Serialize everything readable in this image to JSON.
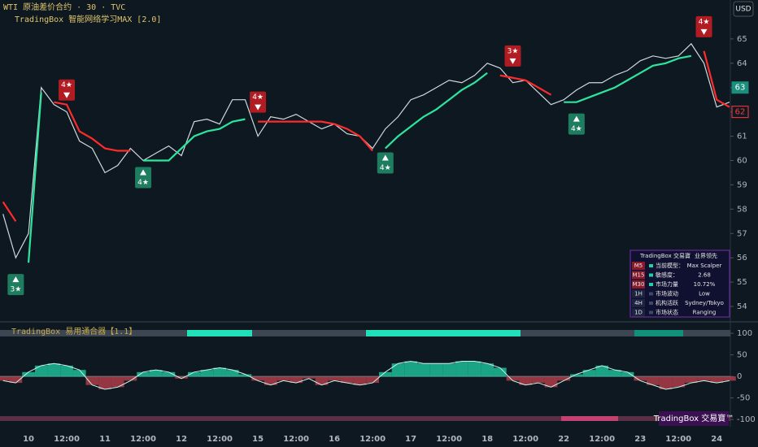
{
  "header": {
    "symbol": "WTI 原油差价合约 · 30 · TVC",
    "indicator": "TradingBox  智能网络学习MAX [2.0]",
    "currency": "USD",
    "oscillator": "TradingBox  易用通合器【1.1】",
    "brand": "TradingBox 交易寶™"
  },
  "table": {
    "header": [
      "TradingBox 交易寶",
      "业界领先"
    ],
    "rows": [
      [
        "M5",
        "当前模型：",
        "Max Scalper"
      ],
      [
        "M15",
        "敏感度：",
        "2.68"
      ],
      [
        "M30",
        "市场力量",
        "10.72%"
      ],
      [
        "1H",
        "市场波动",
        "Low"
      ],
      [
        "4H",
        "机构活跃",
        "Sydney/Tokyo"
      ],
      [
        "1D",
        "市场状态",
        "Ranging"
      ]
    ]
  },
  "chart_data": [
    {
      "type": "line",
      "categories": [
        null,
        null,
        "10",
        null,
        null,
        "12:00",
        null,
        null,
        "11",
        null,
        null,
        "12:00",
        null,
        null,
        "12",
        null,
        null,
        "12:00",
        null,
        null,
        "15",
        null,
        null,
        "12:00",
        null,
        null,
        "16",
        null,
        null,
        "12:00",
        null,
        null,
        "17",
        null,
        null,
        "12:00",
        null,
        null,
        "18",
        null,
        null,
        "12:00",
        null,
        null,
        "22",
        null,
        null,
        "12:00",
        null,
        null,
        "23",
        null,
        null,
        "12:00",
        null,
        null,
        "24",
        null
      ],
      "series": [
        {
          "color": "#cfd8dc",
          "values": [
            57.8,
            56.0,
            57.0,
            63.0,
            62.3,
            62.0,
            60.8,
            60.5,
            59.5,
            59.8,
            60.5,
            60.0,
            60.3,
            60.6,
            60.2,
            61.6,
            61.7,
            61.5,
            62.5,
            62.5,
            61.0,
            61.8,
            61.7,
            61.9,
            61.6,
            61.3,
            61.5,
            61.1,
            61.0,
            60.5,
            61.3,
            61.8,
            62.5,
            62.7,
            63.0,
            63.3,
            63.2,
            63.5,
            64.0,
            63.8,
            63.2,
            63.3,
            62.8,
            62.3,
            62.5,
            62.9,
            63.2,
            63.2,
            63.5,
            63.7,
            64.1,
            64.3,
            64.2,
            64.3,
            64.8,
            64.0,
            62.2,
            62.4
          ]
        },
        {
          "color": "#2ee59d",
          "values": [
            null,
            null,
            55.8,
            62.8,
            null,
            null,
            null,
            null,
            null,
            null,
            null,
            60.0,
            60.0,
            60.0,
            60.5,
            61.0,
            61.2,
            61.3,
            61.6,
            61.7,
            null,
            null,
            null,
            null,
            null,
            null,
            null,
            null,
            null,
            null,
            60.5,
            61.0,
            61.4,
            61.8,
            62.1,
            62.5,
            62.9,
            63.2,
            63.6,
            null,
            null,
            null,
            null,
            null,
            62.4,
            62.4,
            62.6,
            62.8,
            63.0,
            63.3,
            63.6,
            63.9,
            64.0,
            64.2,
            64.3,
            null,
            null,
            null
          ]
        },
        {
          "color": "#ff2b2b",
          "values": [
            58.3,
            57.5,
            null,
            null,
            62.4,
            62.3,
            61.2,
            60.9,
            60.5,
            60.4,
            60.4,
            null,
            null,
            null,
            null,
            null,
            null,
            null,
            null,
            null,
            61.6,
            61.6,
            61.6,
            61.6,
            61.6,
            61.6,
            61.5,
            61.3,
            61.0,
            60.4,
            null,
            null,
            null,
            null,
            null,
            null,
            null,
            null,
            null,
            63.5,
            63.4,
            63.3,
            63.0,
            62.7,
            null,
            null,
            null,
            null,
            null,
            null,
            null,
            null,
            null,
            null,
            null,
            64.5,
            62.5,
            62.2
          ]
        }
      ],
      "signals": [
        {
          "label": "3★",
          "kind": "buy",
          "at": 1,
          "value": 54.9
        },
        {
          "label": "4★",
          "kind": "sell",
          "at": 5,
          "value": 62.9
        },
        {
          "label": "4★",
          "kind": "buy",
          "at": 11,
          "value": 59.3
        },
        {
          "label": "4★",
          "kind": "sell",
          "at": 20,
          "value": 62.4
        },
        {
          "label": "4★",
          "kind": "buy",
          "at": 30,
          "value": 59.9
        },
        {
          "label": "3★",
          "kind": "sell",
          "at": 40,
          "value": 64.3
        },
        {
          "label": "4★",
          "kind": "buy",
          "at": 45,
          "value": 61.5
        },
        {
          "label": "4★",
          "kind": "sell",
          "at": 55,
          "value": 65.5
        }
      ],
      "price_labels": [
        {
          "value": 63,
          "color": "#1a8f7d"
        },
        {
          "value": 62,
          "color": "#ff3b3b"
        }
      ],
      "ylim": [
        53.4,
        66.6
      ],
      "yticks": [
        54,
        55,
        56,
        57,
        58,
        59,
        60,
        61,
        62,
        63,
        64,
        65
      ]
    },
    {
      "type": "area",
      "values": [
        -10,
        -15,
        10,
        25,
        30,
        25,
        15,
        -20,
        -30,
        -25,
        -10,
        10,
        15,
        10,
        -5,
        10,
        15,
        20,
        15,
        5,
        -10,
        -20,
        -10,
        -15,
        -5,
        -20,
        -10,
        -15,
        -20,
        -15,
        10,
        30,
        35,
        30,
        30,
        30,
        35,
        35,
        30,
        20,
        -10,
        -20,
        -15,
        -25,
        -10,
        5,
        15,
        25,
        15,
        10,
        -10,
        -20,
        -30,
        -25,
        -15,
        -10,
        -15,
        -10
      ],
      "pos_color": "#1fd1a5",
      "neg_color": "#c2414f",
      "ylim": [
        -111,
        119
      ],
      "yticks": [
        100,
        50,
        0,
        -50,
        -100
      ]
    }
  ]
}
